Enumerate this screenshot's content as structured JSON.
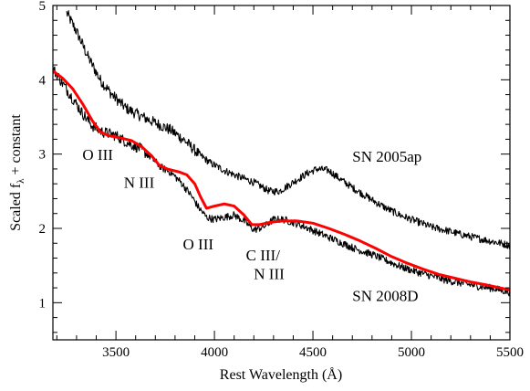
{
  "chart_data": {
    "type": "line",
    "title": "",
    "xlabel": "Rest Wavelength (Å)",
    "ylabel_main": "Scaled f",
    "ylabel_sub": "λ",
    "ylabel_tail": " + constant",
    "xlim": [
      3180,
      5500
    ],
    "ylim": [
      0.5,
      5.0
    ],
    "x_major_ticks": [
      3500,
      4000,
      4500,
      5000,
      5500
    ],
    "x_tick_labels": [
      "3500",
      "4000",
      "4500",
      "5000",
      "5500"
    ],
    "y_major_ticks": [
      1,
      2,
      3,
      4,
      5
    ],
    "y_tick_labels": [
      "1",
      "2",
      "3",
      "4",
      "5"
    ],
    "grid": false,
    "colors": {
      "spectra": "#000000",
      "model": "#ff0000"
    },
    "series": [
      {
        "name": "SN 2005ap",
        "color": "#000000",
        "points": [
          [
            3250,
            4.9
          ],
          [
            3300,
            4.65
          ],
          [
            3360,
            4.3
          ],
          [
            3420,
            4.0
          ],
          [
            3480,
            3.8
          ],
          [
            3550,
            3.62
          ],
          [
            3620,
            3.52
          ],
          [
            3700,
            3.42
          ],
          [
            3780,
            3.32
          ],
          [
            3850,
            3.18
          ],
          [
            3920,
            3.0
          ],
          [
            3980,
            2.88
          ],
          [
            4050,
            2.78
          ],
          [
            4120,
            2.7
          ],
          [
            4200,
            2.62
          ],
          [
            4280,
            2.5
          ],
          [
            4330,
            2.5
          ],
          [
            4400,
            2.62
          ],
          [
            4470,
            2.74
          ],
          [
            4520,
            2.8
          ],
          [
            4580,
            2.78
          ],
          [
            4640,
            2.66
          ],
          [
            4700,
            2.55
          ],
          [
            4760,
            2.45
          ],
          [
            4820,
            2.35
          ],
          [
            4880,
            2.26
          ],
          [
            4950,
            2.17
          ],
          [
            5020,
            2.1
          ],
          [
            5100,
            2.02
          ],
          [
            5180,
            1.97
          ],
          [
            5250,
            1.92
          ],
          [
            5330,
            1.87
          ],
          [
            5400,
            1.83
          ],
          [
            5470,
            1.79
          ],
          [
            5500,
            1.77
          ]
        ]
      },
      {
        "name": "SN 2008D",
        "color": "#000000",
        "points": [
          [
            3180,
            4.15
          ],
          [
            3230,
            3.95
          ],
          [
            3280,
            3.75
          ],
          [
            3330,
            3.55
          ],
          [
            3380,
            3.38
          ],
          [
            3430,
            3.3
          ],
          [
            3500,
            3.25
          ],
          [
            3560,
            3.15
          ],
          [
            3620,
            3.08
          ],
          [
            3680,
            2.95
          ],
          [
            3730,
            2.82
          ],
          [
            3780,
            2.75
          ],
          [
            3830,
            2.62
          ],
          [
            3880,
            2.45
          ],
          [
            3920,
            2.28
          ],
          [
            3960,
            2.15
          ],
          [
            4000,
            2.12
          ],
          [
            4050,
            2.15
          ],
          [
            4100,
            2.18
          ],
          [
            4150,
            2.1
          ],
          [
            4200,
            1.98
          ],
          [
            4250,
            2.02
          ],
          [
            4300,
            2.12
          ],
          [
            4350,
            2.12
          ],
          [
            4400,
            2.08
          ],
          [
            4460,
            2.02
          ],
          [
            4520,
            1.95
          ],
          [
            4580,
            1.88
          ],
          [
            4650,
            1.8
          ],
          [
            4720,
            1.72
          ],
          [
            4800,
            1.65
          ],
          [
            4880,
            1.56
          ],
          [
            4950,
            1.48
          ],
          [
            5020,
            1.42
          ],
          [
            5100,
            1.36
          ],
          [
            5180,
            1.3
          ],
          [
            5260,
            1.26
          ],
          [
            5340,
            1.22
          ],
          [
            5420,
            1.19
          ],
          [
            5500,
            1.14
          ]
        ]
      },
      {
        "name": "",
        "color": "#ff0000",
        "points": [
          [
            3180,
            4.12
          ],
          [
            3230,
            4.02
          ],
          [
            3280,
            3.88
          ],
          [
            3330,
            3.68
          ],
          [
            3380,
            3.45
          ],
          [
            3420,
            3.3
          ],
          [
            3460,
            3.25
          ],
          [
            3520,
            3.22
          ],
          [
            3580,
            3.18
          ],
          [
            3630,
            3.1
          ],
          [
            3680,
            2.98
          ],
          [
            3720,
            2.85
          ],
          [
            3760,
            2.8
          ],
          [
            3820,
            2.76
          ],
          [
            3860,
            2.72
          ],
          [
            3900,
            2.6
          ],
          [
            3930,
            2.42
          ],
          [
            3960,
            2.27
          ],
          [
            4000,
            2.3
          ],
          [
            4050,
            2.33
          ],
          [
            4100,
            2.3
          ],
          [
            4150,
            2.18
          ],
          [
            4190,
            2.05
          ],
          [
            4230,
            2.05
          ],
          [
            4280,
            2.08
          ],
          [
            4340,
            2.1
          ],
          [
            4420,
            2.1
          ],
          [
            4500,
            2.07
          ],
          [
            4580,
            2.0
          ],
          [
            4660,
            1.92
          ],
          [
            4740,
            1.83
          ],
          [
            4820,
            1.73
          ],
          [
            4900,
            1.62
          ],
          [
            4980,
            1.53
          ],
          [
            5060,
            1.45
          ],
          [
            5140,
            1.38
          ],
          [
            5220,
            1.33
          ],
          [
            5300,
            1.28
          ],
          [
            5380,
            1.24
          ],
          [
            5450,
            1.2
          ],
          [
            5500,
            1.17
          ]
        ]
      }
    ],
    "annotations": [
      {
        "text": "O III",
        "x": 3330,
        "y": 2.92
      },
      {
        "text": "N III",
        "x": 3540,
        "y": 2.55
      },
      {
        "text": "O III",
        "x": 3840,
        "y": 1.72
      },
      {
        "text": "C III/",
        "x": 4160,
        "y": 1.57
      },
      {
        "text": "N III",
        "x": 4200,
        "y": 1.32
      },
      {
        "text": "SN 2005ap",
        "x": 4700,
        "y": 2.9
      },
      {
        "text": "SN 2008D",
        "x": 4700,
        "y": 1.02
      }
    ]
  }
}
